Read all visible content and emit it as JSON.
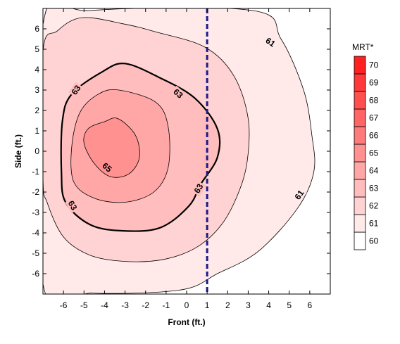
{
  "chart_data": {
    "type": "heatmap",
    "subtype": "filled-contour",
    "title": "",
    "xlabel": "Front (ft.)",
    "ylabel": "Side (ft.)",
    "xlim": [
      -7,
      7
    ],
    "ylim": [
      -7,
      7
    ],
    "xticks": [
      -6,
      -5,
      -4,
      -3,
      -2,
      -1,
      0,
      1,
      2,
      3,
      4,
      5,
      6
    ],
    "yticks": [
      -6,
      -5,
      -4,
      -3,
      -2,
      -1,
      0,
      1,
      2,
      3,
      4,
      5,
      6
    ],
    "grid": false,
    "colorbar": {
      "title": "MRT*",
      "levels": [
        60,
        61,
        62,
        63,
        64,
        65,
        66,
        67,
        68,
        69,
        70
      ],
      "colors": [
        "#ffffff",
        "#ffe9e9",
        "#ffd3d3",
        "#ffbdbd",
        "#ffa7a7",
        "#ff9191",
        "#ff7b7b",
        "#ff6565",
        "#ff4f4f",
        "#ff3939",
        "#ff2020"
      ],
      "placement": "right"
    },
    "contours": [
      {
        "level": 61,
        "label": "61",
        "points": [
          [
            -7.0,
            6.2
          ],
          [
            -4.7,
            6.9
          ],
          [
            3.2,
            6.9
          ],
          [
            4.6,
            5.5
          ],
          [
            5.7,
            3.0
          ],
          [
            6.1,
            0.8
          ],
          [
            6.2,
            -1.0
          ],
          [
            5.4,
            -2.8
          ],
          [
            3.5,
            -4.9
          ],
          [
            1.5,
            -6.0
          ],
          [
            -0.3,
            -6.8
          ],
          [
            -4.6,
            -6.95
          ],
          [
            -7.0,
            -6.5
          ]
        ]
      },
      {
        "level": 62,
        "label": "",
        "points": [
          [
            -7.0,
            4.9
          ],
          [
            -6.3,
            5.9
          ],
          [
            -5.1,
            6.55
          ],
          [
            -3.1,
            6.25
          ],
          [
            -1.5,
            5.85
          ],
          [
            0.9,
            5.1
          ],
          [
            2.3,
            3.7
          ],
          [
            3.0,
            1.6
          ],
          [
            2.95,
            -0.5
          ],
          [
            2.5,
            -2.1
          ],
          [
            1.7,
            -3.6
          ],
          [
            0.5,
            -4.7
          ],
          [
            -1.1,
            -5.3
          ],
          [
            -3.0,
            -5.4
          ],
          [
            -4.7,
            -5.1
          ],
          [
            -6.0,
            -4.2
          ],
          [
            -6.8,
            -2.5
          ],
          [
            -7.0,
            -1.3
          ]
        ]
      },
      {
        "level": 63,
        "label": "63",
        "points": [
          [
            -3.0,
            4.3
          ],
          [
            -1.3,
            3.6
          ],
          [
            0.4,
            2.6
          ],
          [
            1.5,
            1.1
          ],
          [
            1.5,
            -0.3
          ],
          [
            0.7,
            -1.6
          ],
          [
            0.1,
            -2.7
          ],
          [
            -1.3,
            -3.75
          ],
          [
            -3.1,
            -3.9
          ],
          [
            -4.7,
            -3.6
          ],
          [
            -5.9,
            -2.5
          ],
          [
            -6.1,
            -1.0
          ],
          [
            -6.05,
            1.5
          ],
          [
            -5.6,
            2.8
          ],
          [
            -4.1,
            3.9
          ]
        ]
      },
      {
        "level": 64,
        "label": "",
        "points": [
          [
            -3.3,
            3.0
          ],
          [
            -1.5,
            2.4
          ],
          [
            -0.9,
            1.2
          ],
          [
            -0.9,
            -0.8
          ],
          [
            -1.6,
            -2.0
          ],
          [
            -3.0,
            -2.5
          ],
          [
            -4.5,
            -2.3
          ],
          [
            -5.5,
            -1.5
          ],
          [
            -5.6,
            0.2
          ],
          [
            -5.2,
            1.9
          ],
          [
            -4.3,
            2.8
          ]
        ]
      },
      {
        "level": 65,
        "label": "65",
        "points": [
          [
            -3.35,
            1.6
          ],
          [
            -2.5,
            0.8
          ],
          [
            -2.3,
            -0.3
          ],
          [
            -2.8,
            -1.1
          ],
          [
            -3.7,
            -1.25
          ],
          [
            -4.5,
            -0.6
          ],
          [
            -5.0,
            0.4
          ],
          [
            -4.8,
            1.1
          ],
          [
            -4.0,
            1.45
          ]
        ]
      }
    ],
    "marker_line": {
      "x": 1,
      "style": "dashed",
      "color": "#1a1a8c"
    }
  }
}
